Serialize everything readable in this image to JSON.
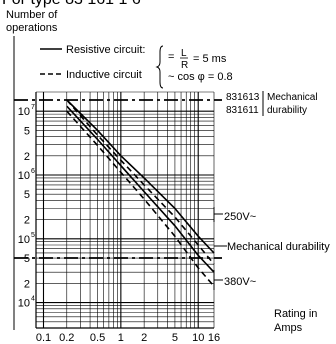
{
  "header": {
    "title": "For type 83 161 1 6"
  },
  "chart_data": {
    "type": "line",
    "ylabel": "Number of operations",
    "xlabel": "Rating in Amps",
    "xscale": "log",
    "yscale": "log",
    "xlim": [
      0.1,
      16
    ],
    "ylim": [
      3000,
      20000000
    ],
    "x_ticks": [
      "0.1",
      "0.2",
      "0.5",
      "1",
      "2",
      "5",
      "10",
      "16"
    ],
    "x_tick_values": [
      0.1,
      0.2,
      0.5,
      1,
      2,
      5,
      10,
      16
    ],
    "y_ticks": [
      {
        "v": 10000000,
        "m": "10",
        "e": "7"
      },
      {
        "v": 5000000,
        "m": "5",
        "e": ""
      },
      {
        "v": 2000000,
        "m": "2",
        "e": ""
      },
      {
        "v": 1000000,
        "m": "10",
        "e": "6"
      },
      {
        "v": 500000,
        "m": "5",
        "e": ""
      },
      {
        "v": 200000,
        "m": "2",
        "e": ""
      },
      {
        "v": 100000,
        "m": "10",
        "e": "5"
      },
      {
        "v": 50000,
        "m": "5",
        "e": ""
      },
      {
        "v": 20000,
        "m": "2",
        "e": ""
      },
      {
        "v": 10000,
        "m": "10",
        "e": "4"
      }
    ],
    "legend": {
      "resistive": "Resistive circuit:",
      "inductive": "Inductive circuit",
      "lr_prefix": "=",
      "lr_num": "L",
      "lr_den": "R",
      "lr_value": "= 5 ms",
      "cos_label": "~ cos φ = 0.8"
    },
    "mechanical_durability": {
      "label_831613": "831613",
      "label_831611": "831611",
      "bracket_text_1": "Mechanical",
      "bracket_text_2": "durability",
      "upper_level": 15000000,
      "lower_level": 50000
    },
    "series": [
      {
        "group": "250V~",
        "style": "solid",
        "points": [
          [
            0.2,
            15000000
          ],
          [
            0.5,
            5000000
          ],
          [
            1,
            2000000
          ],
          [
            2,
            900000
          ],
          [
            5,
            300000
          ],
          [
            10,
            110000
          ],
          [
            16,
            60000
          ]
        ]
      },
      {
        "group": "250V~",
        "style": "dashed",
        "points": [
          [
            0.2,
            15000000
          ],
          [
            0.5,
            4200000
          ],
          [
            1,
            1700000
          ],
          [
            2,
            700000
          ],
          [
            5,
            220000
          ],
          [
            10,
            80000
          ],
          [
            16,
            40000
          ]
        ]
      },
      {
        "group": "380V~",
        "style": "solid",
        "points": [
          [
            0.2,
            12000000
          ],
          [
            0.5,
            3600000
          ],
          [
            1,
            1400000
          ],
          [
            2,
            550000
          ],
          [
            5,
            160000
          ],
          [
            10,
            55000
          ],
          [
            16,
            30000
          ]
        ]
      },
      {
        "group": "380V~",
        "style": "dashed",
        "points": [
          [
            0.2,
            10000000
          ],
          [
            0.5,
            2900000
          ],
          [
            1,
            1100000
          ],
          [
            2,
            420000
          ],
          [
            5,
            110000
          ],
          [
            10,
            35000
          ],
          [
            16,
            18000
          ]
        ]
      }
    ],
    "annotations": {
      "v250": "250V~",
      "mech": "Mechanical durability",
      "v380": "380V~"
    },
    "grid": true
  },
  "colors": {
    "line": "#000000",
    "background": "#ffffff"
  }
}
